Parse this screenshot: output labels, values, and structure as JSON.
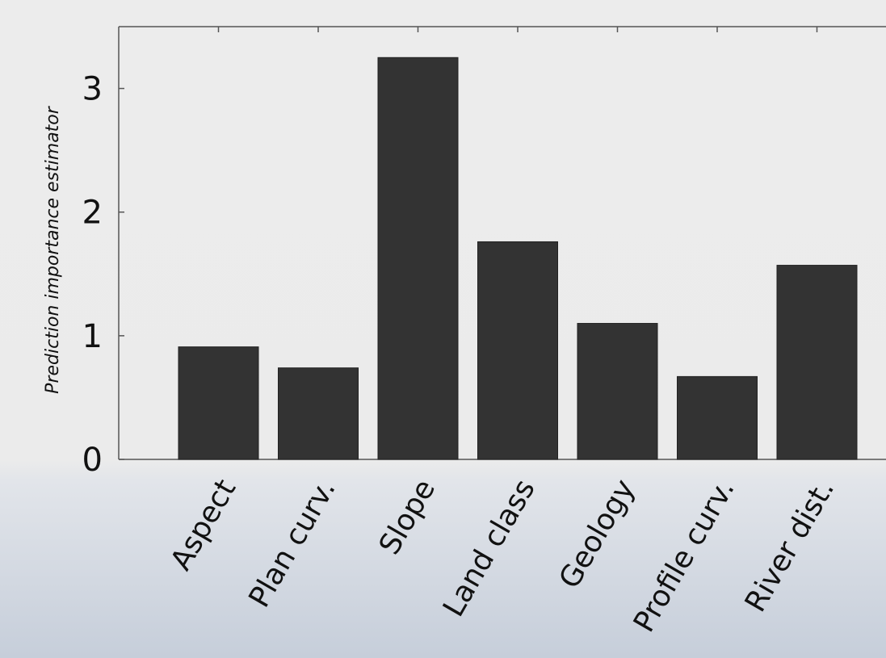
{
  "chart_data": {
    "type": "bar",
    "y_label": "Prediction importance estimator",
    "categories": [
      "Aspect",
      "Plan curv.",
      "Slope",
      "Land class",
      "Geology",
      "Profile curv.",
      "River dist."
    ],
    "values": [
      0.91,
      0.74,
      3.25,
      1.76,
      1.1,
      0.67,
      1.57
    ],
    "color": "#333333",
    "ylim": [
      0,
      3.5
    ],
    "yticks": [
      0,
      1,
      2,
      3
    ]
  }
}
